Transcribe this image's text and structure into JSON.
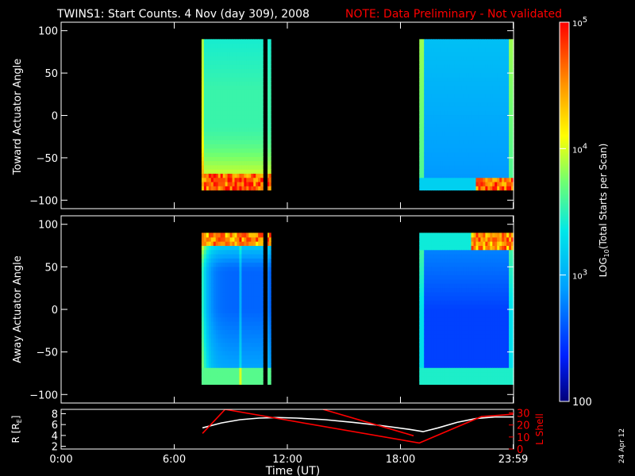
{
  "header": {
    "title": "TWINS1: Start Counts.  4 Nov (day 309), 2008",
    "note": "NOTE: Data Preliminary - Not validated",
    "note_color": "#ff0000"
  },
  "footer": {
    "date_stamp": "24 Apr 12"
  },
  "chart_data": [
    {
      "type": "heatmap",
      "ylabel": "Toward Actuator Angle",
      "ylim": [
        -110,
        110
      ],
      "yticks": [
        100,
        50,
        0,
        -50,
        -100
      ],
      "xlim": [
        0,
        24
      ],
      "angle_range": [
        -88,
        90
      ],
      "data_blocks": [
        {
          "x0": 7.45,
          "x1": 10.7,
          "profile": "toward"
        },
        {
          "x0": 10.95,
          "x1": 11.12,
          "profile": "toward"
        },
        {
          "x0": 19.0,
          "x1": 24.0,
          "profile": "toward_quiet"
        }
      ]
    },
    {
      "type": "heatmap",
      "ylabel": "Away Actuator Angle",
      "ylim": [
        -110,
        110
      ],
      "yticks": [
        100,
        50,
        0,
        -50,
        -100
      ],
      "xlim": [
        0,
        24
      ],
      "angle_range": [
        -88,
        90
      ],
      "data_blocks": [
        {
          "x0": 7.45,
          "x1": 10.7,
          "profile": "away"
        },
        {
          "x0": 10.95,
          "x1": 11.12,
          "profile": "away"
        },
        {
          "x0": 19.0,
          "x1": 24.0,
          "profile": "away_quiet"
        }
      ]
    },
    {
      "type": "line",
      "ylabel_left": "R [R",
      "ylabel_left_sub": "E",
      "ylabel_right": "L Shell",
      "ylim_left": [
        1.5,
        8.8
      ],
      "yticks_left": [
        8,
        6,
        4,
        2
      ],
      "ylim_right": [
        0,
        33
      ],
      "yticks_right": [
        30,
        20,
        10,
        0
      ],
      "series": [
        {
          "axis": "left",
          "color": "#ffffff",
          "x": [
            7.5,
            8.5,
            9.5,
            10.5,
            11.5,
            12.5,
            14,
            15.5,
            17,
            18.5,
            19.2,
            20,
            21,
            22,
            23,
            23.98
          ],
          "y": [
            5.4,
            6.3,
            6.9,
            7.2,
            7.3,
            7.2,
            6.9,
            6.4,
            5.8,
            5.1,
            4.7,
            5.4,
            6.4,
            7.1,
            7.4,
            7.4
          ]
        },
        {
          "axis": "right",
          "color": "#ff0000",
          "x": [
            7.5,
            8.7,
            19.0,
            22.3,
            23.98
          ],
          "y": [
            13,
            33,
            5,
            27,
            29
          ]
        },
        {
          "axis": "right",
          "color": "#ff0000",
          "x": [
            13.9,
            18.7
          ],
          "y": [
            33,
            11
          ]
        }
      ]
    }
  ],
  "xaxis": {
    "label": "Time (UT)",
    "ticks": [
      {
        "t": 0,
        "label": "0:00"
      },
      {
        "t": 6,
        "label": "6:00"
      },
      {
        "t": 12,
        "label": "12:00"
      },
      {
        "t": 18,
        "label": "18:00"
      },
      {
        "t": 23.98,
        "label": "23:59"
      }
    ]
  },
  "colorbar": {
    "title_pre": "LOG",
    "title_sub": "10",
    "title_post": "(Total Starts per Scan)",
    "log_range": [
      2,
      5
    ],
    "labels": [
      {
        "v": 5,
        "label": "10",
        "exp": "5"
      },
      {
        "v": 4,
        "label": "10",
        "exp": "4"
      },
      {
        "v": 3,
        "label": "10",
        "exp": "3"
      },
      {
        "v": 2,
        "label": "100",
        "exp": ""
      }
    ]
  }
}
